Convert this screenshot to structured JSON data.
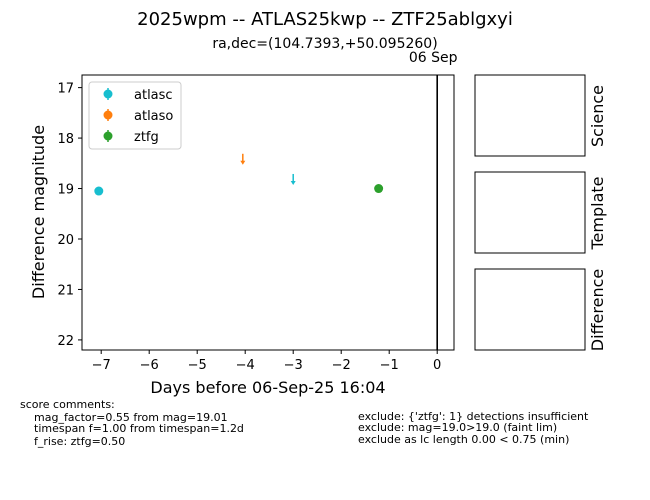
{
  "title": "2025wpm -- ATLAS25kwp -- ZTF25ablgxyi",
  "subtitle": "ra,dec=(104.7393,+50.095260)",
  "chart_data": {
    "type": "scatter",
    "xlabel": "Days before 06-Sep-25 16:04",
    "ylabel": "Difference magnitude",
    "xlim": [
      -7.4,
      0.35
    ],
    "ylim": [
      22.2,
      16.75
    ],
    "y_inverted": true,
    "x_ticks": [
      -7,
      -6,
      -5,
      -4,
      -3,
      -2,
      -1,
      0
    ],
    "x_tick_labels": [
      "−7",
      "−6",
      "−5",
      "−4",
      "−3",
      "−2",
      "−1",
      "0"
    ],
    "y_ticks": [
      17,
      18,
      19,
      20,
      21,
      22
    ],
    "y_tick_labels": [
      "17",
      "18",
      "19",
      "20",
      "21",
      "22"
    ],
    "vline": {
      "x": 0,
      "label": "06 Sep"
    },
    "legend_position": "upper-left",
    "series": [
      {
        "name": "atlasc",
        "color": "#17becf",
        "points": [
          {
            "x": -7.05,
            "y": 19.05,
            "err": 0.05
          }
        ],
        "upper_limits": [
          {
            "x": -3.0,
            "y": 18.85
          }
        ]
      },
      {
        "name": "atlaso",
        "color": "#ff7f0e",
        "points": [],
        "upper_limits": [
          {
            "x": -4.05,
            "y": 18.45
          }
        ]
      },
      {
        "name": "ztfg",
        "color": "#2ca02c",
        "points": [
          {
            "x": -1.22,
            "y": 19.0,
            "err": 0.08
          }
        ],
        "upper_limits": []
      }
    ]
  },
  "panels": [
    {
      "name": "science",
      "label": "Science"
    },
    {
      "name": "template",
      "label": "Template"
    },
    {
      "name": "difference",
      "label": "Difference"
    }
  ],
  "score_comments": {
    "header": "score comments:",
    "lines": [
      "mag_factor=0.55 from mag=19.01",
      "timespan f=1.00 from timespan=1.2d",
      "f_rise: ztfg=0.50"
    ]
  },
  "exclude_comments": [
    "exclude: {'ztfg': 1} detections insufficient",
    "exclude: mag=19.0>19.0 (faint lim)",
    "exclude as lc length 0.00 < 0.75 (min)"
  ]
}
